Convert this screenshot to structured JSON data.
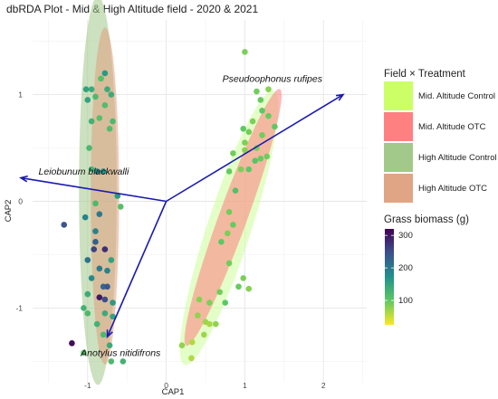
{
  "chart_data": {
    "type": "scatter",
    "title": "dbRDA Plot - Mid & High Altitude field - 2020 & 2021",
    "xlabel": "CAP1",
    "ylabel": "CAP2",
    "xlim": [
      -1.7,
      2.55
    ],
    "ylim": [
      -1.7,
      1.7
    ],
    "xticks": [
      -1,
      0,
      1,
      2
    ],
    "xtick_labels": [
      "-1",
      "0",
      "1",
      "2"
    ],
    "yticks": [
      -1,
      0,
      1
    ],
    "ytick_labels": [
      "-1",
      "0",
      "1"
    ],
    "grid": true,
    "legend_position": "right",
    "ellipses": [
      {
        "group": "Mid. Altitude Control",
        "color": "#ccff99",
        "cx": 0.8,
        "cy": -0.25,
        "rx": 0.28,
        "ry": 1.35,
        "angle": 18
      },
      {
        "group": "Mid. Altitude OTC",
        "color": "#ff8080",
        "cx": 0.85,
        "cy": -0.15,
        "rx": 0.18,
        "ry": 1.28,
        "angle": 20
      },
      {
        "group": "High Altitude Control",
        "color": "#a3c98a",
        "cx": -0.87,
        "cy": 0.1,
        "rx": 0.24,
        "ry": 1.82,
        "angle": 0
      },
      {
        "group": "High Altitude OTC",
        "color": "#e0a080",
        "cx": -0.78,
        "cy": 0.05,
        "rx": 0.18,
        "ry": 1.58,
        "angle": 0
      }
    ],
    "biplot_arrows": [
      {
        "species": "Pseudoophonus rufipes",
        "x": 2.25,
        "y": 1.0,
        "label_x": 1.35,
        "label_y": 1.12
      },
      {
        "species": "Leiobunum blackwalli",
        "x": -1.85,
        "y": 0.22,
        "label_x": -1.05,
        "label_y": 0.25
      },
      {
        "species": "Anotylus nitidifrons",
        "x": -0.75,
        "y": -1.27,
        "label_x": -0.58,
        "label_y": -1.45
      }
    ],
    "arrow_origin": {
      "x": 0,
      "y": 0
    },
    "arrow_color": "#1a1ab3",
    "points": [
      {
        "x": 1.0,
        "y": 1.4,
        "biomass": 85
      },
      {
        "x": 1.15,
        "y": 1.03,
        "biomass": 90
      },
      {
        "x": 1.2,
        "y": 0.95,
        "biomass": 95
      },
      {
        "x": 1.3,
        "y": 1.05,
        "biomass": 80
      },
      {
        "x": 1.22,
        "y": 0.85,
        "biomass": 100
      },
      {
        "x": 1.1,
        "y": 0.75,
        "biomass": 85
      },
      {
        "x": 1.05,
        "y": 0.65,
        "biomass": 90
      },
      {
        "x": 1.3,
        "y": 0.8,
        "biomass": 95
      },
      {
        "x": 1.38,
        "y": 0.7,
        "biomass": 100
      },
      {
        "x": 1.22,
        "y": 0.62,
        "biomass": 90
      },
      {
        "x": 1.15,
        "y": 0.5,
        "biomass": 85
      },
      {
        "x": 1.0,
        "y": 0.48,
        "biomass": 80
      },
      {
        "x": 1.13,
        "y": 0.38,
        "biomass": 105
      },
      {
        "x": 1.2,
        "y": 0.4,
        "biomass": 95
      },
      {
        "x": 1.28,
        "y": 0.42,
        "biomass": 90
      },
      {
        "x": 0.98,
        "y": 0.68,
        "biomass": 100
      },
      {
        "x": 1.0,
        "y": 0.55,
        "biomass": 85
      },
      {
        "x": 0.85,
        "y": 0.45,
        "biomass": 90
      },
      {
        "x": 0.8,
        "y": 0.28,
        "biomass": 95
      },
      {
        "x": 0.95,
        "y": 0.3,
        "biomass": 85
      },
      {
        "x": 1.05,
        "y": 0.3,
        "biomass": 100
      },
      {
        "x": 0.88,
        "y": 0.1,
        "biomass": 110
      },
      {
        "x": 0.8,
        "y": -0.1,
        "biomass": 90
      },
      {
        "x": 0.85,
        "y": -0.22,
        "biomass": 95
      },
      {
        "x": 0.78,
        "y": -0.3,
        "biomass": 85
      },
      {
        "x": 0.7,
        "y": -0.38,
        "biomass": 100
      },
      {
        "x": 0.8,
        "y": -0.58,
        "biomass": 90
      },
      {
        "x": 0.98,
        "y": -0.72,
        "biomass": 85
      },
      {
        "x": 0.92,
        "y": -0.8,
        "biomass": 95
      },
      {
        "x": 1.05,
        "y": -0.82,
        "biomass": 80
      },
      {
        "x": 0.68,
        "y": -0.85,
        "biomass": 90
      },
      {
        "x": 0.55,
        "y": -0.95,
        "biomass": 85
      },
      {
        "x": 0.75,
        "y": -0.95,
        "biomass": 100
      },
      {
        "x": 0.42,
        "y": -0.92,
        "biomass": 80
      },
      {
        "x": 0.4,
        "y": -1.07,
        "biomass": 75
      },
      {
        "x": 0.5,
        "y": -1.13,
        "biomass": 70
      },
      {
        "x": 0.55,
        "y": -1.15,
        "biomass": 65
      },
      {
        "x": 0.63,
        "y": -1.15,
        "biomass": 75
      },
      {
        "x": 0.48,
        "y": -1.25,
        "biomass": 70
      },
      {
        "x": 0.33,
        "y": -1.32,
        "biomass": 60
      },
      {
        "x": 0.2,
        "y": -1.35,
        "biomass": 75
      },
      {
        "x": 0.32,
        "y": -1.47,
        "biomass": 60
      },
      {
        "x": -0.78,
        "y": 1.2,
        "biomass": 160
      },
      {
        "x": -0.83,
        "y": 1.15,
        "biomass": 110
      },
      {
        "x": -1.02,
        "y": 1.05,
        "biomass": 150
      },
      {
        "x": -0.95,
        "y": 1.05,
        "biomass": 140
      },
      {
        "x": -0.75,
        "y": 1.05,
        "biomass": 140
      },
      {
        "x": -0.7,
        "y": 1.0,
        "biomass": 140
      },
      {
        "x": -0.9,
        "y": 0.98,
        "biomass": 120
      },
      {
        "x": -1.0,
        "y": 0.95,
        "biomass": 150
      },
      {
        "x": -0.78,
        "y": 0.9,
        "biomass": 115
      },
      {
        "x": -0.85,
        "y": 0.78,
        "biomass": 110
      },
      {
        "x": -0.95,
        "y": 0.75,
        "biomass": 130
      },
      {
        "x": -0.68,
        "y": 0.75,
        "biomass": 120
      },
      {
        "x": -0.72,
        "y": 0.68,
        "biomass": 115
      },
      {
        "x": -0.98,
        "y": 0.5,
        "biomass": 120
      },
      {
        "x": -0.95,
        "y": 0.3,
        "biomass": 130
      },
      {
        "x": -0.88,
        "y": 0.28,
        "biomass": 180
      },
      {
        "x": -0.8,
        "y": 0.28,
        "biomass": 170
      },
      {
        "x": -0.62,
        "y": 0.05,
        "biomass": 160
      },
      {
        "x": -0.58,
        "y": -0.05,
        "biomass": 110
      },
      {
        "x": -0.9,
        "y": -0.02,
        "biomass": 120
      },
      {
        "x": -0.85,
        "y": -0.12,
        "biomass": 200
      },
      {
        "x": -1.03,
        "y": -0.15,
        "biomass": 190
      },
      {
        "x": -0.9,
        "y": -0.28,
        "biomass": 190
      },
      {
        "x": -1.3,
        "y": -0.22,
        "biomass": 240
      },
      {
        "x": -0.9,
        "y": -0.38,
        "biomass": 230
      },
      {
        "x": -0.92,
        "y": -0.45,
        "biomass": 260
      },
      {
        "x": -0.78,
        "y": -0.45,
        "biomass": 280
      },
      {
        "x": -1.0,
        "y": -0.55,
        "biomass": 210
      },
      {
        "x": -0.7,
        "y": -0.55,
        "biomass": 150
      },
      {
        "x": -0.85,
        "y": -0.63,
        "biomass": 200
      },
      {
        "x": -0.75,
        "y": -0.65,
        "biomass": 190
      },
      {
        "x": -0.95,
        "y": -0.72,
        "biomass": 180
      },
      {
        "x": -0.8,
        "y": -0.8,
        "biomass": 220
      },
      {
        "x": -0.75,
        "y": -0.8,
        "biomass": 240
      },
      {
        "x": -1.0,
        "y": -0.87,
        "biomass": 140
      },
      {
        "x": -0.85,
        "y": -0.9,
        "biomass": 300
      },
      {
        "x": -0.78,
        "y": -0.92,
        "biomass": 250
      },
      {
        "x": -0.68,
        "y": -0.95,
        "biomass": 160
      },
      {
        "x": -1.05,
        "y": -1.0,
        "biomass": 130
      },
      {
        "x": -1.0,
        "y": -1.05,
        "biomass": 120
      },
      {
        "x": -0.78,
        "y": -1.05,
        "biomass": 140
      },
      {
        "x": -0.68,
        "y": -1.08,
        "biomass": 150
      },
      {
        "x": -0.88,
        "y": -1.15,
        "biomass": 130
      },
      {
        "x": -0.8,
        "y": -1.25,
        "biomass": 120
      },
      {
        "x": -1.2,
        "y": -1.33,
        "biomass": 310
      },
      {
        "x": -0.72,
        "y": -1.35,
        "biomass": 140
      },
      {
        "x": -1.05,
        "y": -1.42,
        "biomass": 110
      },
      {
        "x": -0.7,
        "y": -1.5,
        "biomass": 120
      },
      {
        "x": -0.55,
        "y": -1.5,
        "biomass": 130
      }
    ],
    "legend_fill": {
      "title": "Field × Treatment",
      "entries": [
        {
          "label": "Mid. Altitude Control",
          "color": "#ccff66"
        },
        {
          "label": "Mid. Altitude OTC",
          "color": "#ff8080"
        },
        {
          "label": "High Altitude Control",
          "color": "#a3c98a"
        },
        {
          "label": "High Altitude OTC",
          "color": "#e0a585"
        }
      ]
    },
    "legend_color": {
      "title": "Grass biomass (g)",
      "min": 25,
      "max": 320,
      "ticks": [
        100,
        200,
        300
      ],
      "tick_labels": [
        "100",
        "200",
        "300"
      ],
      "colormap": "viridis"
    }
  }
}
